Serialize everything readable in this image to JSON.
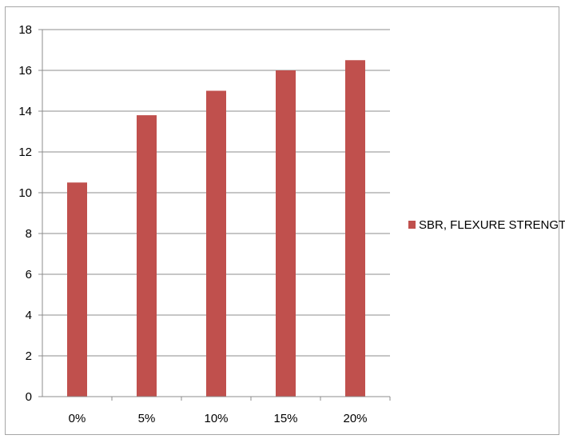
{
  "chart_data": {
    "type": "bar",
    "title": "",
    "xlabel": "",
    "ylabel": "",
    "categories": [
      "0%",
      "5%",
      "10%",
      "15%",
      "20%"
    ],
    "series": [
      {
        "name": "SBR, FLEXURE STRENGTH",
        "values": [
          10.5,
          13.8,
          15.0,
          16.0,
          16.5
        ],
        "color": "#c0504d"
      }
    ],
    "ylim": [
      0,
      18
    ],
    "yticks": [
      0,
      2,
      4,
      6,
      8,
      10,
      12,
      14,
      16,
      18
    ],
    "grid": true,
    "legend_position": "right"
  }
}
